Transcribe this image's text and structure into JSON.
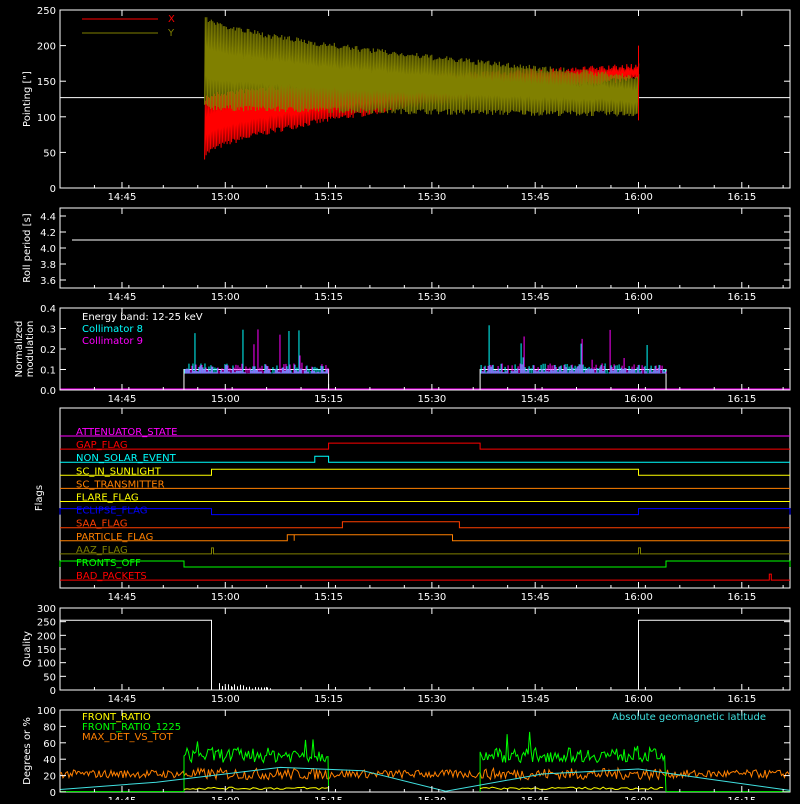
{
  "time_ticks": [
    "14:45",
    "15:00",
    "15:15",
    "15:30",
    "15:45",
    "16:00",
    "16:15"
  ],
  "chart_data": [
    {
      "type": "line",
      "ylabel": "Pointing [\"]",
      "ylim": [
        0,
        250
      ],
      "yticks": [
        "0",
        "50",
        "100",
        "150",
        "200",
        "250"
      ],
      "legend": {
        "position": "top-left",
        "entries": [
          {
            "name": "X",
            "color": "#ff0000"
          },
          {
            "name": "Y",
            "color": "#808000"
          }
        ]
      },
      "x_range": [
        "14:36",
        "16:22"
      ],
      "baseline": 127,
      "active": [
        "14:57",
        "16:00"
      ],
      "series": [
        {
          "name": "X",
          "color": "#ff0000",
          "envelope_start": [
            40,
            130
          ],
          "envelope_end": [
            150,
            175
          ]
        },
        {
          "name": "Y",
          "color": "#808000",
          "envelope_start": [
            110,
            245
          ],
          "envelope_end": [
            100,
            160
          ]
        }
      ]
    },
    {
      "type": "line",
      "ylabel": "Roll period [s]",
      "ylim": [
        3.5,
        4.5
      ],
      "yticks": [
        "3.6",
        "3.8",
        "4.0",
        "4.2",
        "4.4"
      ],
      "value": 4.1,
      "color": "#ffffff"
    },
    {
      "type": "bar",
      "ylabel_lines": [
        "Normalized",
        "modulation"
      ],
      "ylim": [
        0,
        0.4
      ],
      "yticks": [
        "0.0",
        "0.1",
        "0.2",
        "0.3",
        "0.4"
      ],
      "annotations": [
        "Energy band: 12-25 keV"
      ],
      "series": [
        {
          "name": "Collimator 8",
          "color": "#00ffff"
        },
        {
          "name": "Collimator 9",
          "color": "#ff00ff"
        }
      ],
      "active_intervals": [
        [
          "14:54",
          "15:15"
        ],
        [
          "15:37",
          "16:04"
        ]
      ],
      "typical_level": 0.1
    },
    {
      "type": "line",
      "ylabel": "Flags",
      "flags": [
        {
          "name": "ATTENUATOR_STATE",
          "color": "#ff00ff",
          "high": []
        },
        {
          "name": "GAP_FLAG",
          "color": "#ff0000",
          "high": [
            [
              "15:15",
              "15:37"
            ]
          ]
        },
        {
          "name": "NON_SOLAR_EVENT",
          "color": "#00ffff",
          "high": [
            [
              "15:13",
              "15:15"
            ]
          ]
        },
        {
          "name": "SC_IN_SUNLIGHT",
          "color": "#ffff00",
          "high": [
            [
              "14:58",
              "16:00"
            ]
          ]
        },
        {
          "name": "SC_TRANSMITTER",
          "color": "#ff8000",
          "high": []
        },
        {
          "name": "FLARE_FLAG",
          "color": "#ffff00",
          "high": []
        },
        {
          "name": "ECLIPSE_FLAG",
          "color": "#0000ff",
          "high": [
            [
              "14:36",
              "14:58"
            ],
            [
              "16:00",
              "16:22"
            ]
          ]
        },
        {
          "name": "SAA_FLAG",
          "color": "#ff4000",
          "high": [
            [
              "15:17",
              "15:34"
            ]
          ]
        },
        {
          "name": "PARTICLE_FLAG",
          "color": "#ff8000",
          "high": [
            [
              "15:09",
              "15:10"
            ],
            [
              "15:10",
              "15:33"
            ]
          ]
        },
        {
          "name": "AAZ_FLAG",
          "color": "#808000",
          "high": [
            [
              "14:58",
              "14:58"
            ],
            [
              "16:00",
              "16:00"
            ]
          ]
        },
        {
          "name": "FRONTS_OFF",
          "color": "#00ff00",
          "high": [
            [
              "14:36",
              "14:54"
            ],
            [
              "16:04",
              "16:22"
            ]
          ]
        },
        {
          "name": "BAD_PACKETS",
          "color": "#ff0000",
          "high": [
            [
              "16:19",
              "16:19"
            ]
          ]
        }
      ]
    },
    {
      "type": "line",
      "ylabel": "Quality",
      "ylim": [
        0,
        300
      ],
      "yticks": [
        "0",
        "50",
        "100",
        "150",
        "200",
        "250",
        "300"
      ],
      "color": "#ffffff",
      "segments": [
        {
          "from": "14:36",
          "to": "14:58",
          "value": 255
        },
        {
          "from": "14:58",
          "to": "16:00",
          "value": 0
        },
        {
          "from": "16:00",
          "to": "16:22",
          "value": 255
        }
      ]
    },
    {
      "type": "line",
      "ylabel": "Degrees or %",
      "ylim": [
        0,
        100
      ],
      "yticks": [
        "0",
        "20",
        "40",
        "60",
        "80",
        "100"
      ],
      "annotations": [
        "Absolute geomagnetic latitude"
      ],
      "series": [
        {
          "name": "FRONT_RATIO",
          "color": "#ffff00",
          "typical": 3
        },
        {
          "name": "FRONT_RATIO_1225",
          "color": "#00ff00",
          "typical": 45
        },
        {
          "name": "MAX_DET_VS_TOT",
          "color": "#ff8000",
          "typical": 22
        },
        {
          "name": "Absolute geomagnetic latitude",
          "color": "#40e0e0"
        }
      ]
    }
  ]
}
